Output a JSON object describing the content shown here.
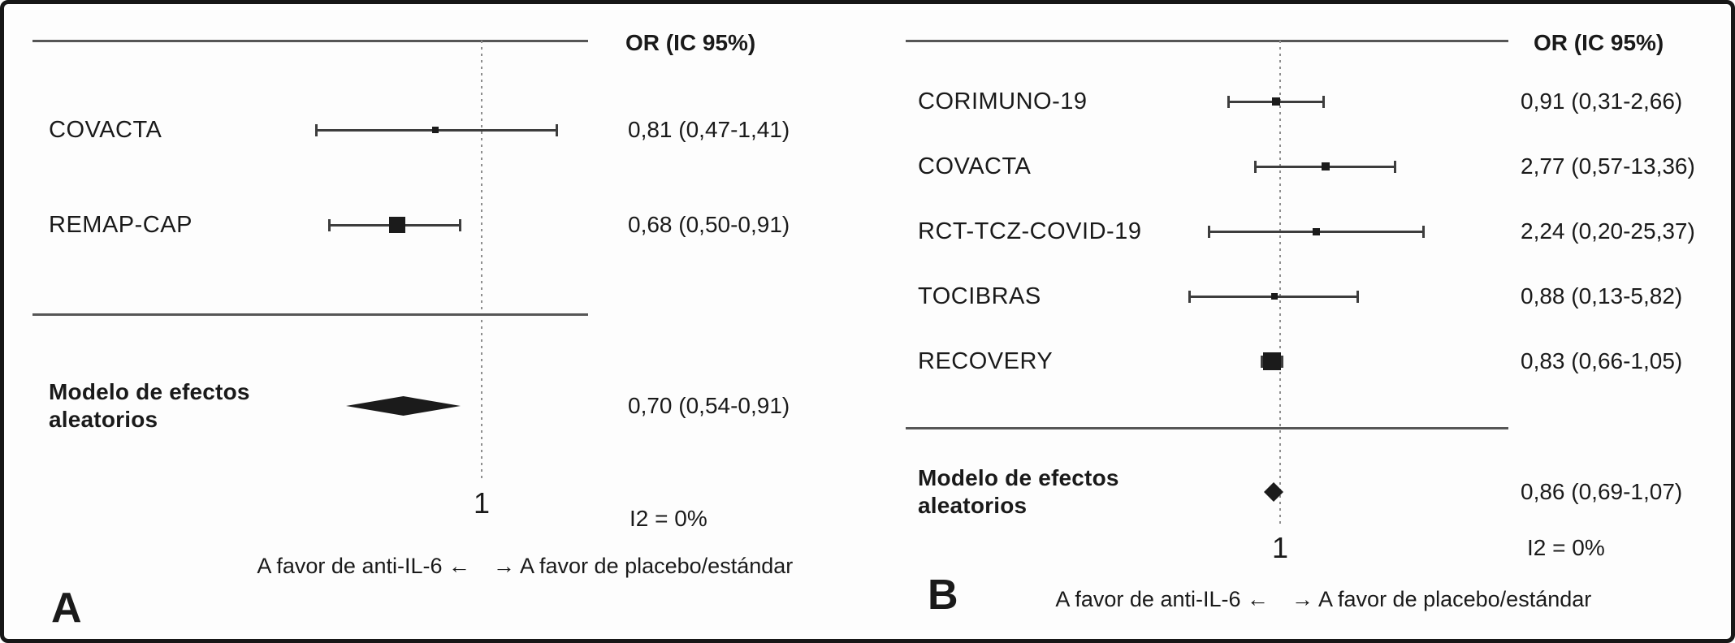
{
  "chart_data": [
    {
      "type": "forest",
      "panel": "A",
      "title": "OR (IC 95%)",
      "x_scale": "log10",
      "reference_value": 1,
      "x_tick_labels": [
        "1"
      ],
      "heterogeneity": "I2 = 0%",
      "favors_left_text": "A favor de anti-IL-6 ←",
      "favors_right_text": "→ A favor de placebo/estándar",
      "studies": [
        {
          "name": "COVACTA",
          "or": 0.81,
          "ci_low": 0.47,
          "ci_high": 1.41,
          "or_text": "0,81 (0,47-1,41)",
          "marker_size": 8
        },
        {
          "name": "REMAP-CAP",
          "or": 0.68,
          "ci_low": 0.5,
          "ci_high": 0.91,
          "or_text": "0,68 (0,50-0,91)",
          "marker_size": 20
        }
      ],
      "summary": {
        "name": "Modelo de efectos aleatorios",
        "or": 0.7,
        "ci_low": 0.54,
        "ci_high": 0.91,
        "or_text": "0,70 (0,54-0,91)"
      }
    },
    {
      "type": "forest",
      "panel": "B",
      "title": "OR (IC 95%)",
      "x_scale": "log10",
      "reference_value": 1,
      "x_tick_labels": [
        "1"
      ],
      "heterogeneity": "I2 = 0%",
      "favors_left_text": "A favor de anti-IL-6 ←",
      "favors_right_text": "→ A favor de placebo/estándar",
      "studies": [
        {
          "name": "CORIMUNO-19",
          "or": 0.91,
          "ci_low": 0.31,
          "ci_high": 2.66,
          "or_text": "0,91 (0,31-2,66)",
          "marker_size": 10
        },
        {
          "name": "COVACTA",
          "or": 2.77,
          "ci_low": 0.57,
          "ci_high": 13.36,
          "or_text": "2,77 (0,57-13,36)",
          "marker_size": 10
        },
        {
          "name": "RCT-TCZ-COVID-19",
          "or": 2.24,
          "ci_low": 0.2,
          "ci_high": 25.37,
          "or_text": "2,24 (0,20-25,37)",
          "marker_size": 9
        },
        {
          "name": "TOCIBRAS",
          "or": 0.88,
          "ci_low": 0.13,
          "ci_high": 5.82,
          "or_text": "0,88 (0,13-5,82)",
          "marker_size": 8
        },
        {
          "name": "RECOVERY",
          "or": 0.83,
          "ci_low": 0.66,
          "ci_high": 1.05,
          "or_text": "0,83 (0,66-1,05)",
          "marker_size": 22
        }
      ],
      "summary": {
        "name": "Modelo de efectos aleatorios",
        "or": 0.86,
        "ci_low": 0.69,
        "ci_high": 1.07,
        "or_text": "0,86 (0,69-1,07)"
      }
    }
  ]
}
